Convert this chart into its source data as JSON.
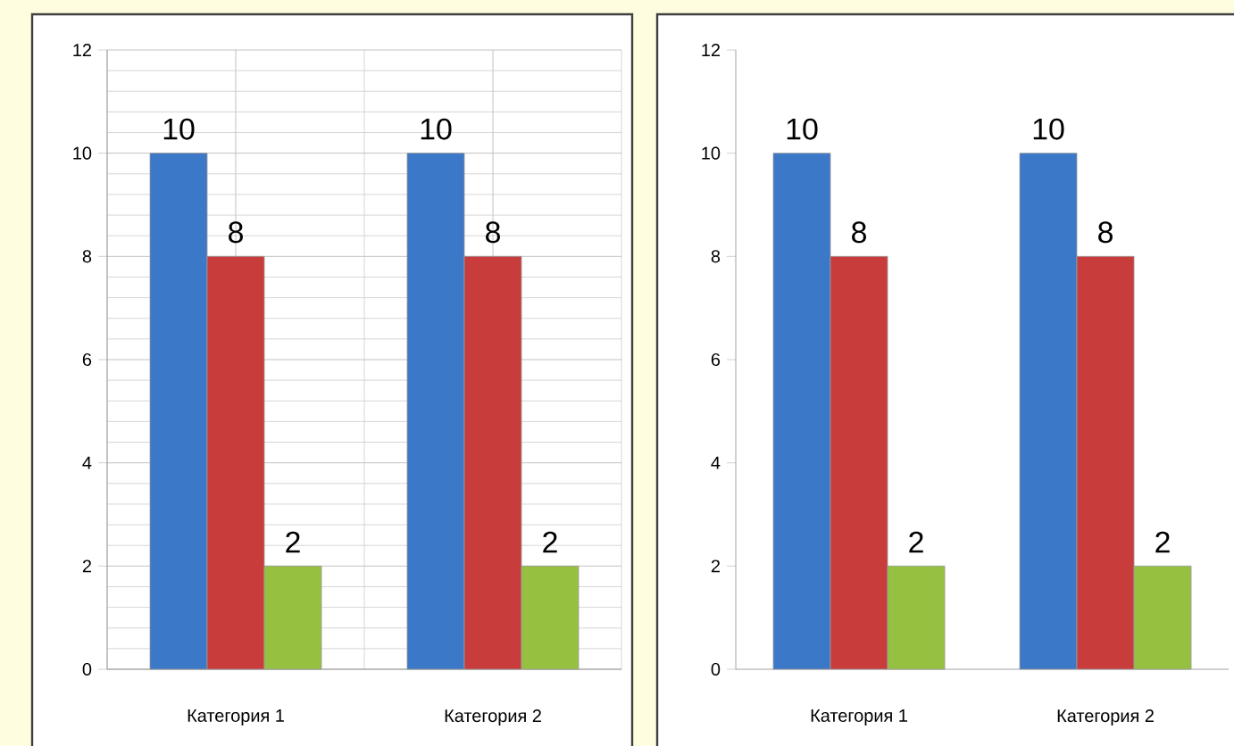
{
  "chart_data": [
    {
      "type": "bar",
      "categories": [
        "Категория 1",
        "Категория 2"
      ],
      "series": [
        {
          "color": "#3c78c8",
          "values": [
            10,
            10
          ]
        },
        {
          "color": "#c83c3c",
          "values": [
            8,
            8
          ]
        },
        {
          "color": "#96c040",
          "values": [
            2,
            2
          ]
        }
      ],
      "ylim": [
        0,
        12
      ],
      "yticks": [
        0,
        2,
        4,
        6,
        8,
        10,
        12
      ],
      "grid": true,
      "data_labels": true
    },
    {
      "type": "bar",
      "categories": [
        "Категория 1",
        "Категория 2"
      ],
      "series": [
        {
          "color": "#3c78c8",
          "values": [
            10,
            10
          ]
        },
        {
          "color": "#c83c3c",
          "values": [
            8,
            8
          ]
        },
        {
          "color": "#96c040",
          "values": [
            2,
            2
          ]
        }
      ],
      "ylim": [
        0,
        12
      ],
      "yticks": [
        0,
        2,
        4,
        6,
        8,
        10,
        12
      ],
      "data_labels": true
    }
  ]
}
